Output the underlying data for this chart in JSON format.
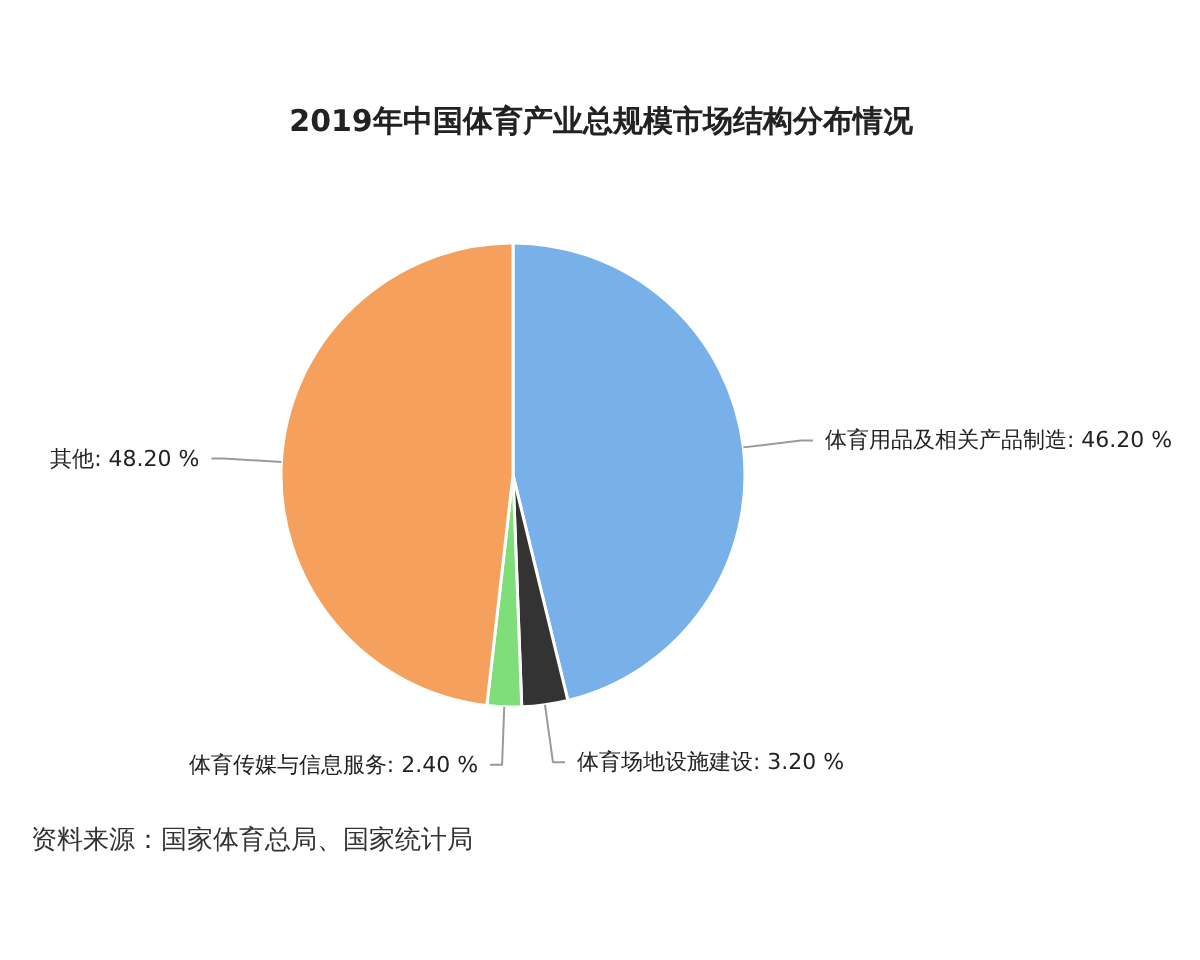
{
  "chart_data": {
    "type": "pie",
    "title": "2019年中国体育产业总规模市场结构分布情况",
    "categories": [
      "体育用品及相关产品制造",
      "体育场地设施建设",
      "体育传媒与信息服务",
      "其他"
    ],
    "values": [
      46.2,
      3.2,
      2.4,
      48.2
    ],
    "colors": [
      "#78b1e9",
      "#333333",
      "#80de7a",
      "#f5a05c"
    ],
    "value_labels": [
      "46.20 %",
      "3.20 %",
      "2.40 %",
      "48.20 %"
    ],
    "annotations": [
      "资料来源：国家体育总局、国家统计局"
    ]
  }
}
